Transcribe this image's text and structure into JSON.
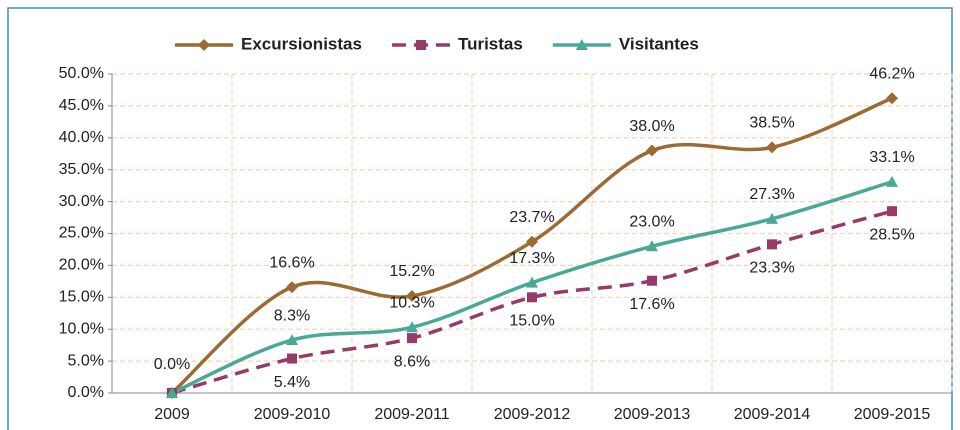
{
  "chart_data": {
    "type": "line",
    "categories": [
      "2009",
      "2009-2010",
      "2009-2011",
      "2009-2012",
      "2009-2013",
      "2009-2014",
      "2009-2015"
    ],
    "series": [
      {
        "name": "Excursionistas",
        "color": "#9c6a34",
        "marker": "diamond",
        "dashed": false,
        "values": [
          0.0,
          16.6,
          15.2,
          23.7,
          38.0,
          38.5,
          46.2
        ],
        "value_labels": [
          "0.0%",
          "16.6%",
          "15.2%",
          "23.7%",
          "38.0%",
          "38.5%",
          "46.2%"
        ],
        "label_position": "above"
      },
      {
        "name": "Turistas",
        "color": "#963a68",
        "marker": "square",
        "dashed": true,
        "values": [
          0.0,
          5.4,
          8.6,
          15.0,
          17.6,
          23.3,
          28.5
        ],
        "value_labels": [
          null,
          "5.4%",
          "8.6%",
          "15.0%",
          "17.6%",
          "23.3%",
          "28.5%"
        ],
        "label_position": "below"
      },
      {
        "name": "Visitantes",
        "color": "#4aa898",
        "marker": "triangle",
        "dashed": false,
        "values": [
          0.0,
          8.3,
          10.3,
          17.3,
          23.0,
          27.3,
          33.1
        ],
        "value_labels": [
          null,
          "8.3%",
          "10.3%",
          "17.3%",
          "23.0%",
          "27.3%",
          "33.1%"
        ],
        "label_position": "above"
      }
    ],
    "ylim": [
      0,
      50
    ],
    "yticks": [
      {
        "value": 0,
        "label": "0.0%"
      },
      {
        "value": 5,
        "label": "5.0%"
      },
      {
        "value": 10,
        "label": "10.0%"
      },
      {
        "value": 15,
        "label": "15.0%"
      },
      {
        "value": 20,
        "label": "20.0%"
      },
      {
        "value": 25,
        "label": "25.0%"
      },
      {
        "value": 30,
        "label": "30.0%"
      },
      {
        "value": 35,
        "label": "35.0%"
      },
      {
        "value": 40,
        "label": "40.0%"
      },
      {
        "value": 45,
        "label": "45.0%"
      },
      {
        "value": 50,
        "label": "50.0%"
      }
    ],
    "grid": true,
    "legend": "top"
  }
}
